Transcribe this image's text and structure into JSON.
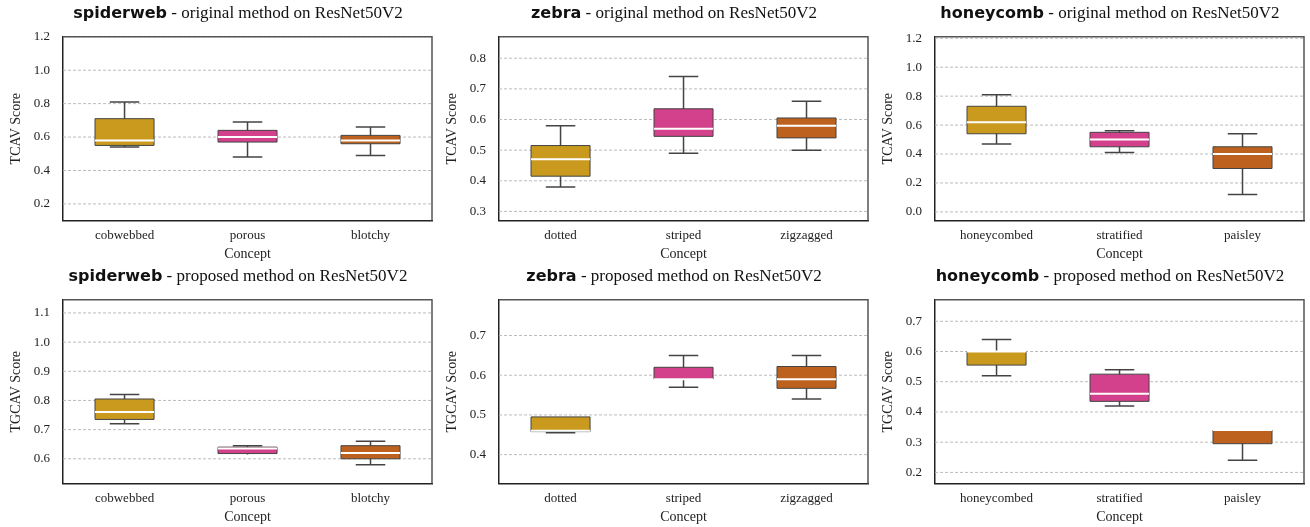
{
  "chart_data": [
    {
      "type": "box",
      "title": "spiderweb - original method on ResNet50V2",
      "xlabel": "Concept",
      "ylabel": "TCAV Score",
      "categories": [
        "cobwebbed",
        "porous",
        "blotchy"
      ],
      "colors": [
        "#c99a1e",
        "#d3408b",
        "#bd611f"
      ],
      "ylim": [
        0.1,
        1.2
      ],
      "yticks": [
        {
          "value": 0.2,
          "label": "0.2"
        },
        {
          "value": 0.4,
          "label": "0.4"
        },
        {
          "value": 0.6,
          "label": "0.6"
        },
        {
          "value": 0.8,
          "label": "0.8"
        },
        {
          "value": 1.0,
          "label": "1.0"
        },
        {
          "value": 1.2,
          "label": "1.2"
        }
      ],
      "grid": "y",
      "boxes": [
        {
          "low": 0.54,
          "q1": 0.55,
          "median": 0.58,
          "q3": 0.71,
          "high": 0.81
        },
        {
          "low": 0.48,
          "q1": 0.57,
          "median": 0.6,
          "q3": 0.64,
          "high": 0.69
        },
        {
          "low": 0.49,
          "q1": 0.56,
          "median": 0.58,
          "q3": 0.61,
          "high": 0.66
        }
      ]
    },
    {
      "type": "box",
      "title": "zebra - original method on ResNet50V2",
      "xlabel": "Concept",
      "ylabel": "TCAV Score",
      "categories": [
        "dotted",
        "striped",
        "zigzagged"
      ],
      "colors": [
        "#c99a1e",
        "#d3408b",
        "#bd611f"
      ],
      "ylim": [
        0.27,
        0.87
      ],
      "yticks": [
        0.3,
        0.4,
        0.5,
        0.6,
        0.7,
        0.8
      ],
      "grid": "y",
      "boxes": [
        {
          "low": 0.38,
          "q1": 0.415,
          "median": 0.47,
          "q3": 0.515,
          "high": 0.58
        },
        {
          "low": 0.49,
          "q1": 0.545,
          "median": 0.57,
          "q3": 0.635,
          "high": 0.74
        },
        {
          "low": 0.5,
          "q1": 0.54,
          "median": 0.58,
          "q3": 0.605,
          "high": 0.66
        }
      ]
    },
    {
      "type": "box",
      "title": "honeycomb - original method on ResNet50V2",
      "xlabel": "Concept",
      "ylabel": "TCAV Score",
      "categories": [
        "honeycombed",
        "stratified",
        "paisley"
      ],
      "colors": [
        "#c99a1e",
        "#d3408b",
        "#bd611f"
      ],
      "ylim": [
        -0.06,
        1.21
      ],
      "yticks": [
        {
          "value": 0,
          "label": "0.0"
        },
        {
          "value": 0.2,
          "label": "0.2"
        },
        {
          "value": 0.4,
          "label": "0.4"
        },
        {
          "value": 0.6,
          "label": "0.6"
        },
        {
          "value": 0.8,
          "label": "0.8"
        },
        {
          "value": 1.0,
          "label": "1.0"
        },
        {
          "value": 1.2,
          "label": "1.2"
        }
      ],
      "grid": "y",
      "boxes": [
        {
          "low": 0.47,
          "q1": 0.54,
          "median": 0.62,
          "q3": 0.73,
          "high": 0.81
        },
        {
          "low": 0.41,
          "q1": 0.45,
          "median": 0.5,
          "q3": 0.55,
          "high": 0.56
        },
        {
          "low": 0.12,
          "q1": 0.3,
          "median": 0.4,
          "q3": 0.45,
          "high": 0.54
        }
      ]
    },
    {
      "type": "box",
      "title": "spiderweb - proposed method on ResNet50V2",
      "xlabel": "Concept",
      "ylabel": "TGCAV Score",
      "categories": [
        "cobwebbed",
        "porous",
        "blotchy"
      ],
      "colors": [
        "#c99a1e",
        "#d3408b",
        "#bd611f"
      ],
      "ylim": [
        0.515,
        1.145
      ],
      "yticks": [
        0.6,
        0.7,
        0.8,
        0.9,
        {
          "value": 1.0,
          "label": "1.0"
        },
        1.1
      ],
      "grid": "y",
      "boxes": [
        {
          "low": 0.72,
          "q1": 0.735,
          "median": 0.76,
          "q3": 0.805,
          "high": 0.82
        },
        {
          "low": 0.615,
          "q1": 0.618,
          "median": 0.635,
          "q3": 0.64,
          "high": 0.645
        },
        {
          "low": 0.58,
          "q1": 0.6,
          "median": 0.62,
          "q3": 0.645,
          "high": 0.66
        }
      ]
    },
    {
      "type": "box",
      "title": "zebra - proposed method on ResNet50V2",
      "xlabel": "Concept",
      "ylabel": "TGCAV Score",
      "categories": [
        "dotted",
        "striped",
        "zigzagged"
      ],
      "colors": [
        "#c99a1e",
        "#d3408b",
        "#bd611f"
      ],
      "ylim": [
        0.327,
        0.79
      ],
      "yticks": [
        0.4,
        0.5,
        0.6,
        0.7
      ],
      "grid": "y",
      "boxes": [
        {
          "low": 0.455,
          "q1": 0.458,
          "median": 0.46,
          "q3": 0.495,
          "high": 0.495
        },
        {
          "low": 0.57,
          "q1": 0.59,
          "median": 0.59,
          "q3": 0.62,
          "high": 0.65
        },
        {
          "low": 0.54,
          "q1": 0.567,
          "median": 0.59,
          "q3": 0.622,
          "high": 0.65
        }
      ]
    },
    {
      "type": "box",
      "title": "honeycomb - proposed method on ResNet50V2",
      "xlabel": "Concept",
      "ylabel": "TGCAV Score",
      "categories": [
        "honeycombed",
        "stratified",
        "paisley"
      ],
      "colors": [
        "#c99a1e",
        "#d3408b",
        "#bd611f"
      ],
      "ylim": [
        0.163,
        0.771
      ],
      "yticks": [
        0.2,
        0.3,
        0.4,
        0.5,
        0.6,
        0.7
      ],
      "grid": "y",
      "boxes": [
        {
          "low": 0.52,
          "q1": 0.555,
          "median": 0.6,
          "q3": 0.6,
          "high": 0.64
        },
        {
          "low": 0.42,
          "q1": 0.435,
          "median": 0.46,
          "q3": 0.525,
          "high": 0.54
        },
        {
          "low": 0.24,
          "q1": 0.295,
          "median": 0.34,
          "q3": 0.34,
          "high": 0.34
        }
      ]
    }
  ]
}
